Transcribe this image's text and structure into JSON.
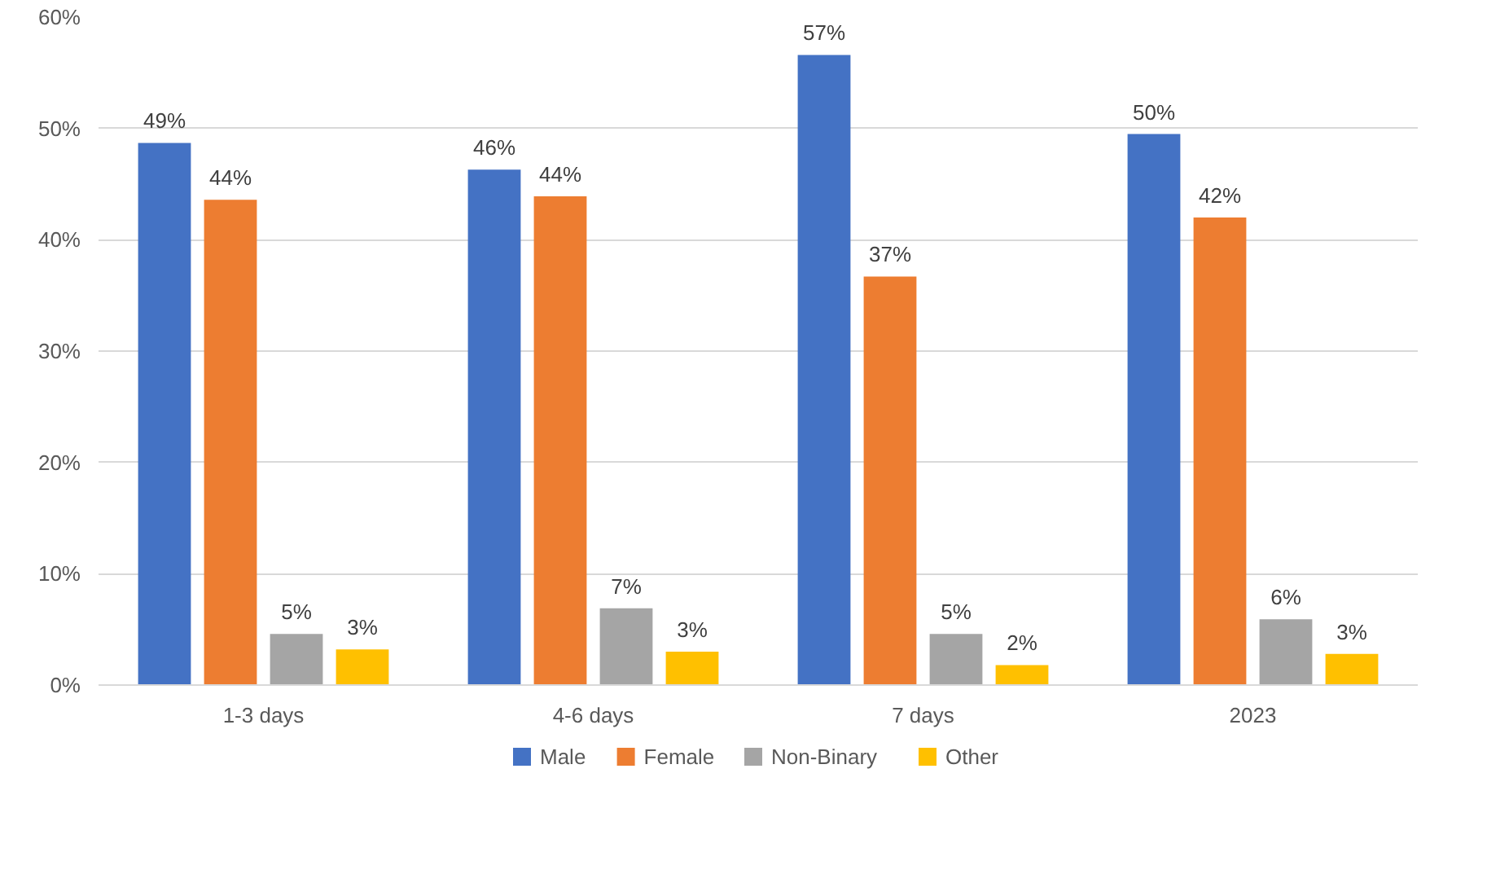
{
  "chart_data": {
    "type": "bar",
    "categories": [
      "1-3 days",
      "4-6 days",
      "7 days",
      "2023"
    ],
    "series": [
      {
        "name": "Male",
        "color": "#4472c4",
        "values": [
          48.7,
          46.3,
          56.6,
          49.5
        ],
        "value_labels": [
          "49%",
          "46%",
          "57%",
          "50%"
        ]
      },
      {
        "name": "Female",
        "color": "#ed7d31",
        "values": [
          43.6,
          43.9,
          36.7,
          42.0
        ],
        "value_labels": [
          "44%",
          "44%",
          "37%",
          "42%"
        ]
      },
      {
        "name": "Non-Binary",
        "color": "#a5a5a5",
        "values": [
          4.6,
          6.9,
          4.6,
          5.9
        ],
        "value_labels": [
          "5%",
          "7%",
          "5%",
          "6%"
        ]
      },
      {
        "name": "Other",
        "color": "#ffc000",
        "values": [
          3.2,
          3.0,
          1.8,
          2.8
        ],
        "value_labels": [
          "3%",
          "3%",
          "2%",
          "3%"
        ]
      }
    ],
    "ylim": [
      0,
      60
    ],
    "yticks": [
      {
        "value": 0,
        "label": "0%"
      },
      {
        "value": 10,
        "label": "10%"
      },
      {
        "value": 20,
        "label": "20%"
      },
      {
        "value": 30,
        "label": "30%"
      },
      {
        "value": 40,
        "label": "40%"
      },
      {
        "value": 50,
        "label": "50%"
      },
      {
        "value": 60,
        "label": "60%"
      }
    ],
    "grid": "y",
    "legend": "bottom"
  }
}
